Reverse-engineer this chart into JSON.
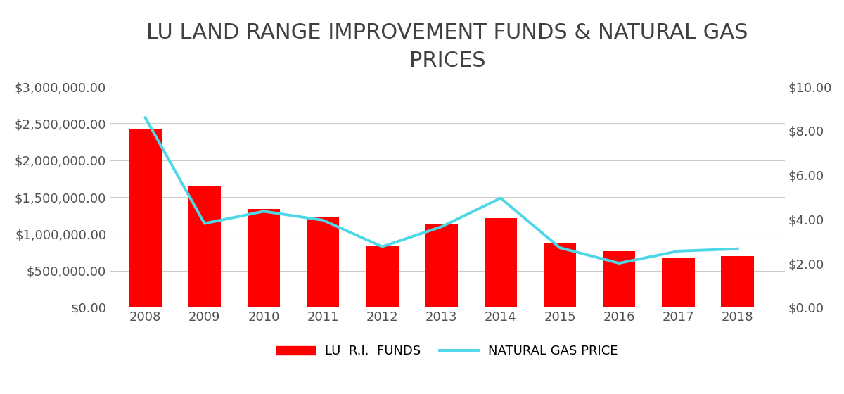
{
  "years": [
    2008,
    2009,
    2010,
    2011,
    2012,
    2013,
    2014,
    2015,
    2016,
    2017,
    2018
  ],
  "lu_ri_funds": [
    2420000,
    1650000,
    1340000,
    1220000,
    830000,
    1130000,
    1210000,
    870000,
    760000,
    680000,
    700000
  ],
  "nat_gas_price": [
    8.6,
    3.8,
    4.35,
    3.95,
    2.75,
    3.65,
    4.95,
    2.7,
    2.0,
    2.55,
    2.65
  ],
  "bar_color": "#ff0000",
  "line_color": "#4dd8e8",
  "title_line1": "LU LAND RANGE IMPROVEMENT FUNDS & NATURAL GAS",
  "title_line2": "PRICES",
  "legend_bar": "LU  R.I.  FUNDS",
  "legend_line": "NATURAL GAS PRICE",
  "ylim_left": [
    0,
    3000000
  ],
  "ylim_right": [
    0,
    10
  ],
  "background_color": "#ffffff",
  "grid_color": "#cccccc",
  "title_fontsize": 22,
  "tick_fontsize": 13,
  "legend_fontsize": 13,
  "xlim": [
    2007.4,
    2018.8
  ]
}
